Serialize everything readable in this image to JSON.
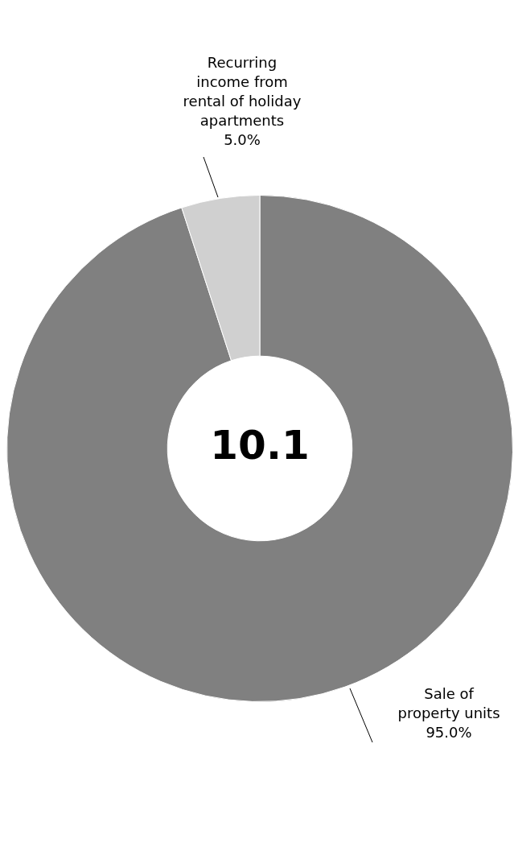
{
  "chart_data": {
    "type": "donut",
    "categories": [
      "Sale of property units",
      "Recurring income from rental of holiday apartments"
    ],
    "values": [
      95,
      5
    ],
    "colors": [
      "#808080",
      "#d0d0d0"
    ],
    "value_labels": [
      "95.0%",
      "5.0%"
    ],
    "annotations": [
      "10.1"
    ],
    "legend": false
  }
}
